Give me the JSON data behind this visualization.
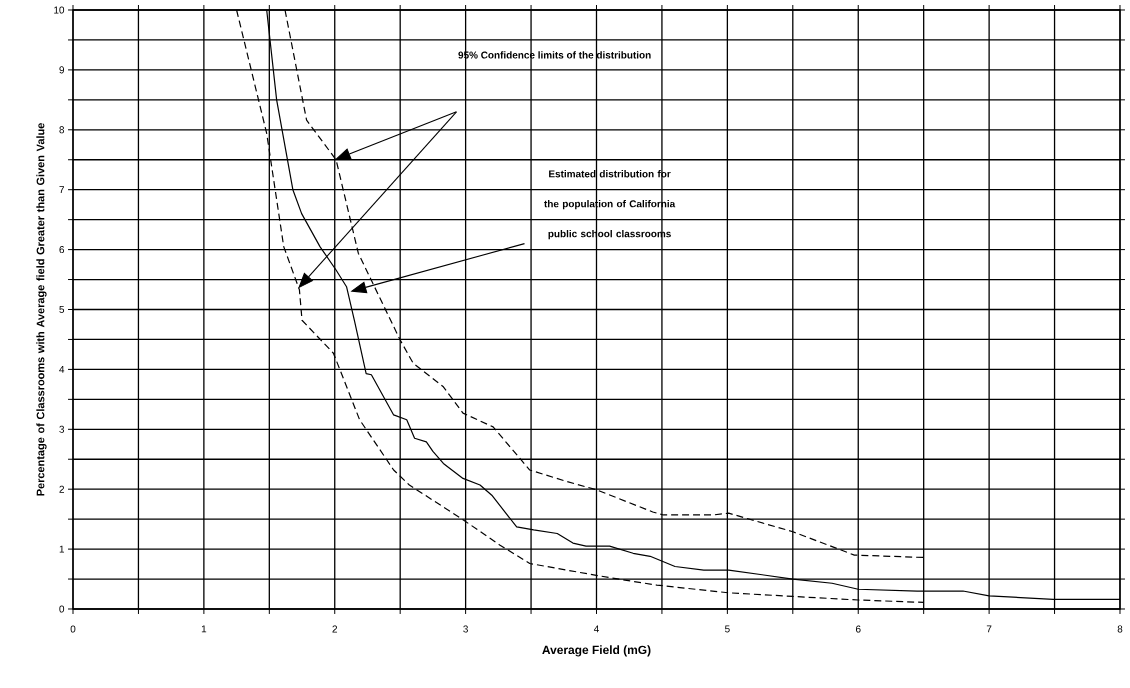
{
  "chart_data": {
    "type": "line",
    "xlabel": "Average Field (mG)",
    "ylabel": "Percentage of Classrooms with Average field Greater than Given Value",
    "annotations": [
      "95% Confidence limits of the distribution",
      "Estimated distribution for the population of California public school classrooms"
    ],
    "series": [
      {
        "color": "#000000",
        "line_style": "solid",
        "x": [
          1.48,
          1.556,
          1.68,
          1.747,
          1.887,
          2.01,
          2.09,
          2.15,
          2.24,
          2.28,
          2.45,
          2.55,
          2.61,
          2.7,
          2.75,
          2.83,
          2.98,
          3.11,
          3.2,
          3.39,
          3.52,
          3.7,
          3.82,
          3.92,
          4.1,
          4.28,
          4.41,
          4.6,
          4.82,
          5.01,
          5.5,
          5.8,
          6.0,
          6.45,
          6.8,
          7.0,
          7.49,
          8.0
        ],
        "values": [
          10,
          8.5,
          7.0,
          6.6,
          6.05,
          5.66,
          5.38,
          4.82,
          3.93,
          3.91,
          3.24,
          3.16,
          2.85,
          2.79,
          2.63,
          2.43,
          2.18,
          2.07,
          1.9,
          1.37,
          1.32,
          1.26,
          1.1,
          1.05,
          1.05,
          0.93,
          0.88,
          0.71,
          0.65,
          0.65,
          0.5,
          0.43,
          0.33,
          0.3,
          0.3,
          0.22,
          0.16,
          0.16
        ]
      },
      {
        "color": "#000000",
        "line_style": "dashed",
        "x": [
          1.62,
          1.785,
          2.01,
          2.18,
          2.5,
          2.6,
          2.83,
          2.98,
          3.21,
          3.49,
          3.77,
          4.0,
          4.43,
          4.51,
          4.89,
          5.01,
          5.5,
          5.97,
          6.5
        ],
        "values": [
          10,
          8.16,
          7.5,
          5.94,
          4.49,
          4.1,
          3.71,
          3.27,
          3.04,
          2.32,
          2.13,
          1.99,
          1.62,
          1.57,
          1.57,
          1.6,
          1.29,
          0.9,
          0.86
        ]
      },
      {
        "color": "#000000",
        "line_style": "dashed",
        "x": [
          1.25,
          1.48,
          1.61,
          1.73,
          1.75,
          1.99,
          2.19,
          2.45,
          2.57,
          2.98,
          3.26,
          3.49,
          3.77,
          4.03,
          4.28,
          4.46,
          5.01,
          5.5,
          6.0,
          6.5
        ],
        "values": [
          10,
          7.94,
          6.05,
          5.33,
          4.82,
          4.27,
          3.16,
          2.32,
          2.07,
          1.49,
          1.07,
          0.76,
          0.65,
          0.55,
          0.46,
          0.4,
          0.27,
          0.21,
          0.15,
          0.11
        ]
      }
    ],
    "xlim": [
      0,
      8
    ],
    "ylim": [
      0,
      10
    ],
    "xticks": [
      0,
      {
        "value": 0.5,
        "label": null
      },
      1,
      {
        "value": 1.5,
        "label": null
      },
      2,
      {
        "value": 2.5,
        "label": null
      },
      3,
      {
        "value": 3.5,
        "label": null
      },
      4,
      {
        "value": 4.5,
        "label": null
      },
      5,
      {
        "value": 5.5,
        "label": null
      },
      6,
      {
        "value": 6.5,
        "label": null
      },
      7,
      {
        "value": 7.5,
        "label": null
      },
      8
    ],
    "yticks": [
      0,
      {
        "value": 0.5,
        "label": null
      },
      1,
      {
        "value": 1.5,
        "label": null
      },
      2,
      {
        "value": 2.5,
        "label": null
      },
      3,
      {
        "value": 3.5,
        "label": null
      },
      4,
      {
        "value": 4.5,
        "label": null
      },
      5,
      {
        "value": 5.5,
        "label": null
      },
      6,
      {
        "value": 6.5,
        "label": null
      },
      7,
      {
        "value": 7.5,
        "label": null
      },
      8,
      {
        "value": 8.5,
        "label": null
      },
      9,
      {
        "value": 9.5,
        "label": null
      },
      10
    ],
    "grid": true,
    "marker": "none"
  }
}
